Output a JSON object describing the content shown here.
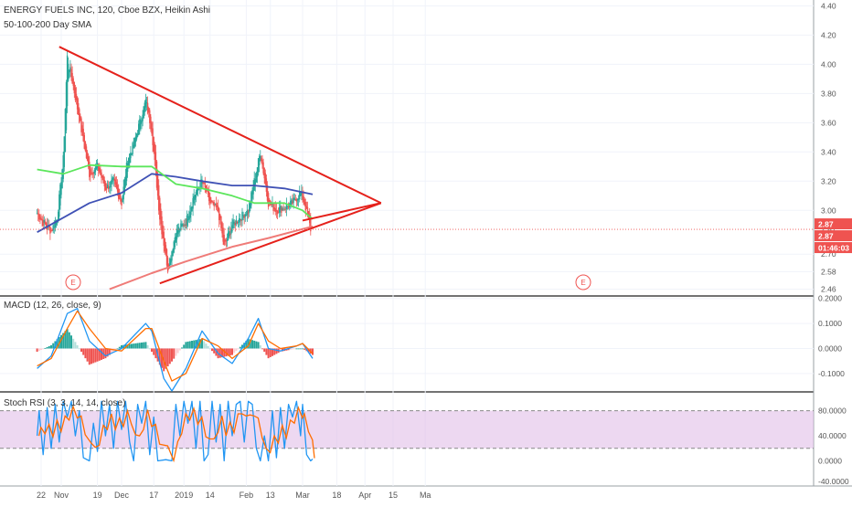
{
  "header": {
    "title": "ENERGY FUELS INC, 120, Cboe BZX, Heikin Ashi",
    "indicator": "50-100-200 Day SMA"
  },
  "colors": {
    "up": "#26a69a",
    "down": "#ef5350",
    "triangle": "#e5211b",
    "sma50": "#5ce65c",
    "sma100": "#3f51b5",
    "sma200": "#ef7b78",
    "macd_line": "#2196f3",
    "signal_line": "#ff6d00",
    "stoch_k": "#2196f3",
    "stoch_d": "#ff6d00",
    "stoch_band": "#e1bee7",
    "price_tag": "#ef5350"
  },
  "chart_data": [
    {
      "type": "candlestick",
      "name": "price",
      "title": "ENERGY FUELS INC, 120, Cboe BZX, Heikin Ashi",
      "y_ticks": [
        "2.46",
        "2.58",
        "2.70",
        "2.87",
        "3.00",
        "3.20",
        "3.40",
        "3.60",
        "3.80",
        "4.00",
        "4.20",
        "4.40"
      ],
      "ylim": [
        2.42,
        4.44
      ],
      "price_tags": [
        "2.87",
        "2.87",
        "01:46:03"
      ],
      "last_price": 2.87,
      "earnings_markers": [
        "E",
        "E"
      ],
      "anchors": [
        {
          "x": "Oct 20",
          "y": 2.98
        },
        {
          "x": "Oct 24",
          "y": 2.9
        },
        {
          "x": "Oct 27",
          "y": 2.86
        },
        {
          "x": "Oct 30",
          "y": 2.95
        },
        {
          "x": "Nov 2",
          "y": 3.35
        },
        {
          "x": "Nov 4",
          "y": 4.05
        },
        {
          "x": "Nov 7",
          "y": 3.85
        },
        {
          "x": "Nov 11",
          "y": 3.55
        },
        {
          "x": "Nov 15",
          "y": 3.25
        },
        {
          "x": "Nov 19",
          "y": 3.3
        },
        {
          "x": "Nov 23",
          "y": 3.15
        },
        {
          "x": "Nov 27",
          "y": 3.2
        },
        {
          "x": "Dec 1",
          "y": 3.05
        },
        {
          "x": "Dec 4",
          "y": 3.35
        },
        {
          "x": "Dec 7",
          "y": 3.45
        },
        {
          "x": "Dec 10",
          "y": 3.6
        },
        {
          "x": "Dec 13",
          "y": 3.75
        },
        {
          "x": "Dec 16",
          "y": 3.55
        },
        {
          "x": "Dec 20",
          "y": 2.95
        },
        {
          "x": "Dec 24",
          "y": 2.6
        },
        {
          "x": "Dec 28",
          "y": 2.85
        },
        {
          "x": "Jan 2",
          "y": 2.92
        },
        {
          "x": "Jan 6",
          "y": 3.1
        },
        {
          "x": "Jan 10",
          "y": 3.2
        },
        {
          "x": "Jan 14",
          "y": 3.05
        },
        {
          "x": "Jan 18",
          "y": 3.0
        },
        {
          "x": "Jan 21",
          "y": 2.75
        },
        {
          "x": "Jan 25",
          "y": 2.9
        },
        {
          "x": "Jan 29",
          "y": 2.95
        },
        {
          "x": "Feb 2",
          "y": 3.0
        },
        {
          "x": "Feb 5",
          "y": 3.2
        },
        {
          "x": "Feb 8",
          "y": 3.4
        },
        {
          "x": "Feb 12",
          "y": 3.05
        },
        {
          "x": "Feb 16",
          "y": 3.0
        },
        {
          "x": "Feb 20",
          "y": 3.02
        },
        {
          "x": "Feb 24",
          "y": 3.05
        },
        {
          "x": "Feb 28",
          "y": 3.12
        },
        {
          "x": "Mar 2",
          "y": 3.05
        },
        {
          "x": "Mar 5",
          "y": 2.87
        }
      ],
      "sma_50": [
        {
          "x": "Oct 20",
          "y": 3.28
        },
        {
          "x": "Nov 2",
          "y": 3.25
        },
        {
          "x": "Nov 15",
          "y": 3.31
        },
        {
          "x": "Dec 1",
          "y": 3.3
        },
        {
          "x": "Dec 16",
          "y": 3.3
        },
        {
          "x": "Dec 28",
          "y": 3.18
        },
        {
          "x": "Jan 10",
          "y": 3.15
        },
        {
          "x": "Jan 25",
          "y": 3.1
        },
        {
          "x": "Feb 5",
          "y": 3.05
        },
        {
          "x": "Feb 20",
          "y": 3.05
        },
        {
          "x": "Mar 1",
          "y": 3.0
        },
        {
          "x": "Mar 6",
          "y": 2.94
        }
      ],
      "sma_100": [
        {
          "x": "Oct 20",
          "y": 2.85
        },
        {
          "x": "Nov 2",
          "y": 2.95
        },
        {
          "x": "Nov 15",
          "y": 3.05
        },
        {
          "x": "Dec 1",
          "y": 3.12
        },
        {
          "x": "Dec 16",
          "y": 3.25
        },
        {
          "x": "Dec 28",
          "y": 3.23
        },
        {
          "x": "Jan 10",
          "y": 3.2
        },
        {
          "x": "Jan 25",
          "y": 3.17
        },
        {
          "x": "Feb 5",
          "y": 3.17
        },
        {
          "x": "Feb 20",
          "y": 3.15
        },
        {
          "x": "Mar 6",
          "y": 3.11
        }
      ],
      "sma_200": [
        {
          "x": "Nov 25",
          "y": 2.46
        },
        {
          "x": "Dec 16",
          "y": 2.57
        },
        {
          "x": "Jan 2",
          "y": 2.65
        },
        {
          "x": "Jan 25",
          "y": 2.75
        },
        {
          "x": "Feb 12",
          "y": 2.81
        },
        {
          "x": "Mar 6",
          "y": 2.89
        }
      ],
      "trendlines": [
        {
          "from": {
            "x": "Oct 31",
            "y": 4.12
          },
          "to": {
            "x": "Apr 9",
            "y": 3.05
          }
        },
        {
          "from": {
            "x": "Dec 20",
            "y": 2.5
          },
          "to": {
            "x": "Apr 9",
            "y": 3.05
          }
        },
        {
          "from": {
            "x": "Mar 6",
            "y": 2.87
          },
          "to": {
            "x": "Mar 6",
            "y": 2.87
          }
        }
      ]
    },
    {
      "type": "macd",
      "name": "MACD",
      "label": "MACD (12, 26, close, 9)",
      "y_ticks": [
        "0.2000",
        "0.1000",
        "0.0000",
        "-0.1000"
      ],
      "ylim": [
        -0.17,
        0.21
      ],
      "macd": [
        {
          "x": "Oct 20",
          "y": -0.08
        },
        {
          "x": "Oct 27",
          "y": -0.03
        },
        {
          "x": "Nov 4",
          "y": 0.14
        },
        {
          "x": "Nov 9",
          "y": 0.16
        },
        {
          "x": "Nov 15",
          "y": 0.03
        },
        {
          "x": "Nov 23",
          "y": -0.03
        },
        {
          "x": "Dec 1",
          "y": 0.0
        },
        {
          "x": "Dec 13",
          "y": 0.1
        },
        {
          "x": "Dec 16",
          "y": 0.07
        },
        {
          "x": "Dec 22",
          "y": -0.12
        },
        {
          "x": "Dec 26",
          "y": -0.17
        },
        {
          "x": "Jan 2",
          "y": -0.08
        },
        {
          "x": "Jan 10",
          "y": 0.07
        },
        {
          "x": "Jan 18",
          "y": -0.02
        },
        {
          "x": "Jan 25",
          "y": -0.06
        },
        {
          "x": "Feb 2",
          "y": 0.04
        },
        {
          "x": "Feb 7",
          "y": 0.12
        },
        {
          "x": "Feb 12",
          "y": 0.0
        },
        {
          "x": "Feb 18",
          "y": -0.01
        },
        {
          "x": "Feb 26",
          "y": 0.01
        },
        {
          "x": "Mar 1",
          "y": 0.02
        },
        {
          "x": "Mar 6",
          "y": -0.04
        }
      ],
      "signal": [
        {
          "x": "Oct 20",
          "y": -0.07
        },
        {
          "x": "Oct 27",
          "y": -0.04
        },
        {
          "x": "Nov 4",
          "y": 0.08
        },
        {
          "x": "Nov 9",
          "y": 0.15
        },
        {
          "x": "Nov 15",
          "y": 0.08
        },
        {
          "x": "Nov 23",
          "y": 0.0
        },
        {
          "x": "Dec 1",
          "y": -0.01
        },
        {
          "x": "Dec 13",
          "y": 0.08
        },
        {
          "x": "Dec 16",
          "y": 0.08
        },
        {
          "x": "Dec 22",
          "y": -0.05
        },
        {
          "x": "Dec 26",
          "y": -0.13
        },
        {
          "x": "Jan 2",
          "y": -0.1
        },
        {
          "x": "Jan 10",
          "y": 0.04
        },
        {
          "x": "Jan 18",
          "y": 0.01
        },
        {
          "x": "Jan 25",
          "y": -0.04
        },
        {
          "x": "Feb 2",
          "y": 0.01
        },
        {
          "x": "Feb 7",
          "y": 0.1
        },
        {
          "x": "Feb 12",
          "y": 0.03
        },
        {
          "x": "Feb 18",
          "y": 0.0
        },
        {
          "x": "Feb 26",
          "y": 0.01
        },
        {
          "x": "Mar 1",
          "y": 0.02
        },
        {
          "x": "Mar 6",
          "y": -0.02
        }
      ]
    },
    {
      "type": "stochastic_rsi",
      "name": "Stoch RSI",
      "label": "Stoch RSI (3, 3, 14, 14, close)",
      "y_ticks": [
        "80.0000",
        "40.0000",
        "0.0000",
        "-40.0000"
      ],
      "ylim": [
        -40,
        110
      ],
      "bands": [
        20,
        80
      ],
      "k": [
        {
          "x": "Oct 20",
          "y": 40
        },
        {
          "x": "Oct 21",
          "y": 80
        },
        {
          "x": "Oct 23",
          "y": 10
        },
        {
          "x": "Oct 25",
          "y": 85
        },
        {
          "x": "Oct 27",
          "y": 20
        },
        {
          "x": "Oct 29",
          "y": 90
        },
        {
          "x": "Oct 31",
          "y": 30
        },
        {
          "x": "Nov 2",
          "y": 95
        },
        {
          "x": "Nov 4",
          "y": 70
        },
        {
          "x": "Nov 6",
          "y": 95
        },
        {
          "x": "Nov 8",
          "y": 40
        },
        {
          "x": "Nov 10",
          "y": 80
        },
        {
          "x": "Nov 12",
          "y": 5
        },
        {
          "x": "Nov 15",
          "y": 0
        },
        {
          "x": "Nov 17",
          "y": 60
        },
        {
          "x": "Nov 19",
          "y": 15
        },
        {
          "x": "Nov 21",
          "y": 95
        },
        {
          "x": "Nov 23",
          "y": 40
        },
        {
          "x": "Nov 25",
          "y": 90
        },
        {
          "x": "Nov 27",
          "y": 20
        },
        {
          "x": "Nov 29",
          "y": 95
        },
        {
          "x": "Dec 1",
          "y": 50
        },
        {
          "x": "Dec 3",
          "y": 95
        },
        {
          "x": "Dec 5",
          "y": 30
        },
        {
          "x": "Dec 7",
          "y": 0
        },
        {
          "x": "Dec 9",
          "y": 90
        },
        {
          "x": "Dec 11",
          "y": 60
        },
        {
          "x": "Dec 13",
          "y": 95
        },
        {
          "x": "Dec 15",
          "y": 10
        },
        {
          "x": "Dec 17",
          "y": 70
        },
        {
          "x": "Dec 19",
          "y": 0
        },
        {
          "x": "Dec 23",
          "y": 2
        },
        {
          "x": "Dec 26",
          "y": 0
        },
        {
          "x": "Dec 28",
          "y": 90
        },
        {
          "x": "Dec 30",
          "y": 40
        },
        {
          "x": "Jan 1",
          "y": 95
        },
        {
          "x": "Jan 3",
          "y": 60
        },
        {
          "x": "Jan 5",
          "y": 95
        },
        {
          "x": "Jan 7",
          "y": 20
        },
        {
          "x": "Jan 9",
          "y": 95
        },
        {
          "x": "Jan 11",
          "y": 0
        },
        {
          "x": "Jan 13",
          "y": 10
        },
        {
          "x": "Jan 15",
          "y": 95
        },
        {
          "x": "Jan 17",
          "y": 30
        },
        {
          "x": "Jan 19",
          "y": 90
        },
        {
          "x": "Jan 21",
          "y": 0
        },
        {
          "x": "Jan 23",
          "y": 95
        },
        {
          "x": "Jan 25",
          "y": 40
        },
        {
          "x": "Jan 27",
          "y": 90
        },
        {
          "x": "Jan 29",
          "y": 95
        },
        {
          "x": "Jan 31",
          "y": 30
        },
        {
          "x": "Feb 2",
          "y": 95
        },
        {
          "x": "Feb 4",
          "y": 90
        },
        {
          "x": "Feb 6",
          "y": 20
        },
        {
          "x": "Feb 8",
          "y": 0
        },
        {
          "x": "Feb 10",
          "y": 40
        },
        {
          "x": "Feb 12",
          "y": 0
        },
        {
          "x": "Feb 14",
          "y": 80
        },
        {
          "x": "Feb 16",
          "y": 5
        },
        {
          "x": "Feb 18",
          "y": 85
        },
        {
          "x": "Feb 20",
          "y": 20
        },
        {
          "x": "Feb 22",
          "y": 90
        },
        {
          "x": "Feb 24",
          "y": 70
        },
        {
          "x": "Feb 26",
          "y": 95
        },
        {
          "x": "Feb 28",
          "y": 40
        },
        {
          "x": "Mar 1",
          "y": 90
        },
        {
          "x": "Mar 3",
          "y": 10
        },
        {
          "x": "Mar 5",
          "y": 0
        },
        {
          "x": "Mar 6",
          "y": 3
        }
      ]
    }
  ],
  "x_axis": {
    "labels": [
      "22",
      "Nov",
      "19",
      "Dec",
      "17",
      "2019",
      "14",
      "Feb",
      "13",
      "Mar",
      "18",
      "Apr",
      "15",
      "Ma"
    ]
  }
}
